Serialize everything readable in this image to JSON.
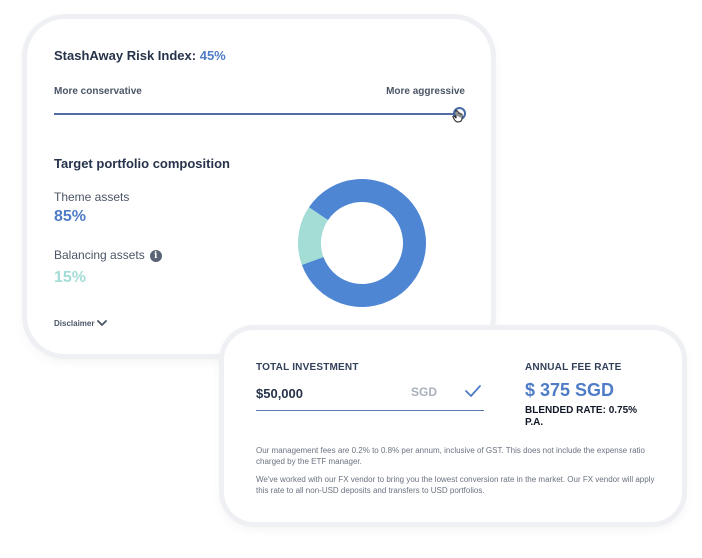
{
  "risk": {
    "title": "StashAway Risk Index:",
    "value": "45%",
    "left_label": "More conservative",
    "right_label": "More aggressive"
  },
  "composition": {
    "title": "Target portfolio composition",
    "theme_label": "Theme assets",
    "theme_value": "85%",
    "balancing_label": "Balancing assets",
    "balancing_value": "15%",
    "info_icon": "i",
    "disclaimer": "Disclaimer"
  },
  "investment": {
    "label": "TOTAL INVESTMENT",
    "amount": "$50,000",
    "currency": "SGD"
  },
  "fee": {
    "label": "ANNUAL FEE RATE",
    "value": "$ 375 SGD",
    "blended": "BLENDED RATE: 0.75% P.A."
  },
  "notes": {
    "fees": "Our management fees are 0.2% to 0.8% per annum, inclusive of GST. This does not include the expense ratio charged by the ETF manager.",
    "fx": "We've worked with our FX vendor to bring you the lowest conversion rate in the market. Our FX vendor will apply this rate to all non-USD deposits and transfers to USD portfolios."
  },
  "chart_data": {
    "type": "pie",
    "style": "donut",
    "slices": [
      {
        "label": "Theme assets",
        "value": 85,
        "color": "#4e86d4"
      },
      {
        "label": "Balancing assets",
        "value": 15,
        "color": "#a3ddd6"
      }
    ]
  },
  "colors": {
    "accent": "#4f7cc7",
    "teal": "#a4dcd6",
    "slider": "#506da4"
  }
}
